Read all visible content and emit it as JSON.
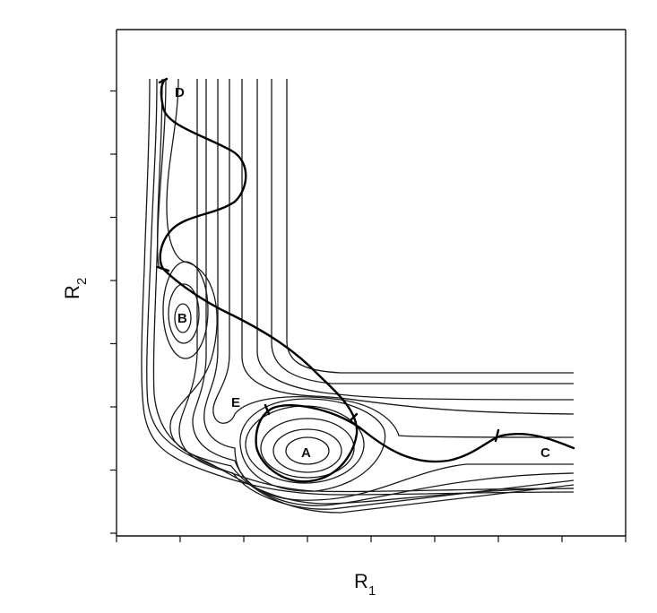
{
  "figure": {
    "x_axis_label": "R",
    "x_axis_subscript": "1",
    "y_axis_label": "R",
    "y_axis_subscript": "2",
    "x_tick_count": 9,
    "y_tick_count": 8
  },
  "regions": {
    "A": "A",
    "B": "B",
    "C": "C",
    "D": "D",
    "E": "E"
  },
  "colors": {
    "ink": "#111111",
    "background": "#ffffff"
  }
}
